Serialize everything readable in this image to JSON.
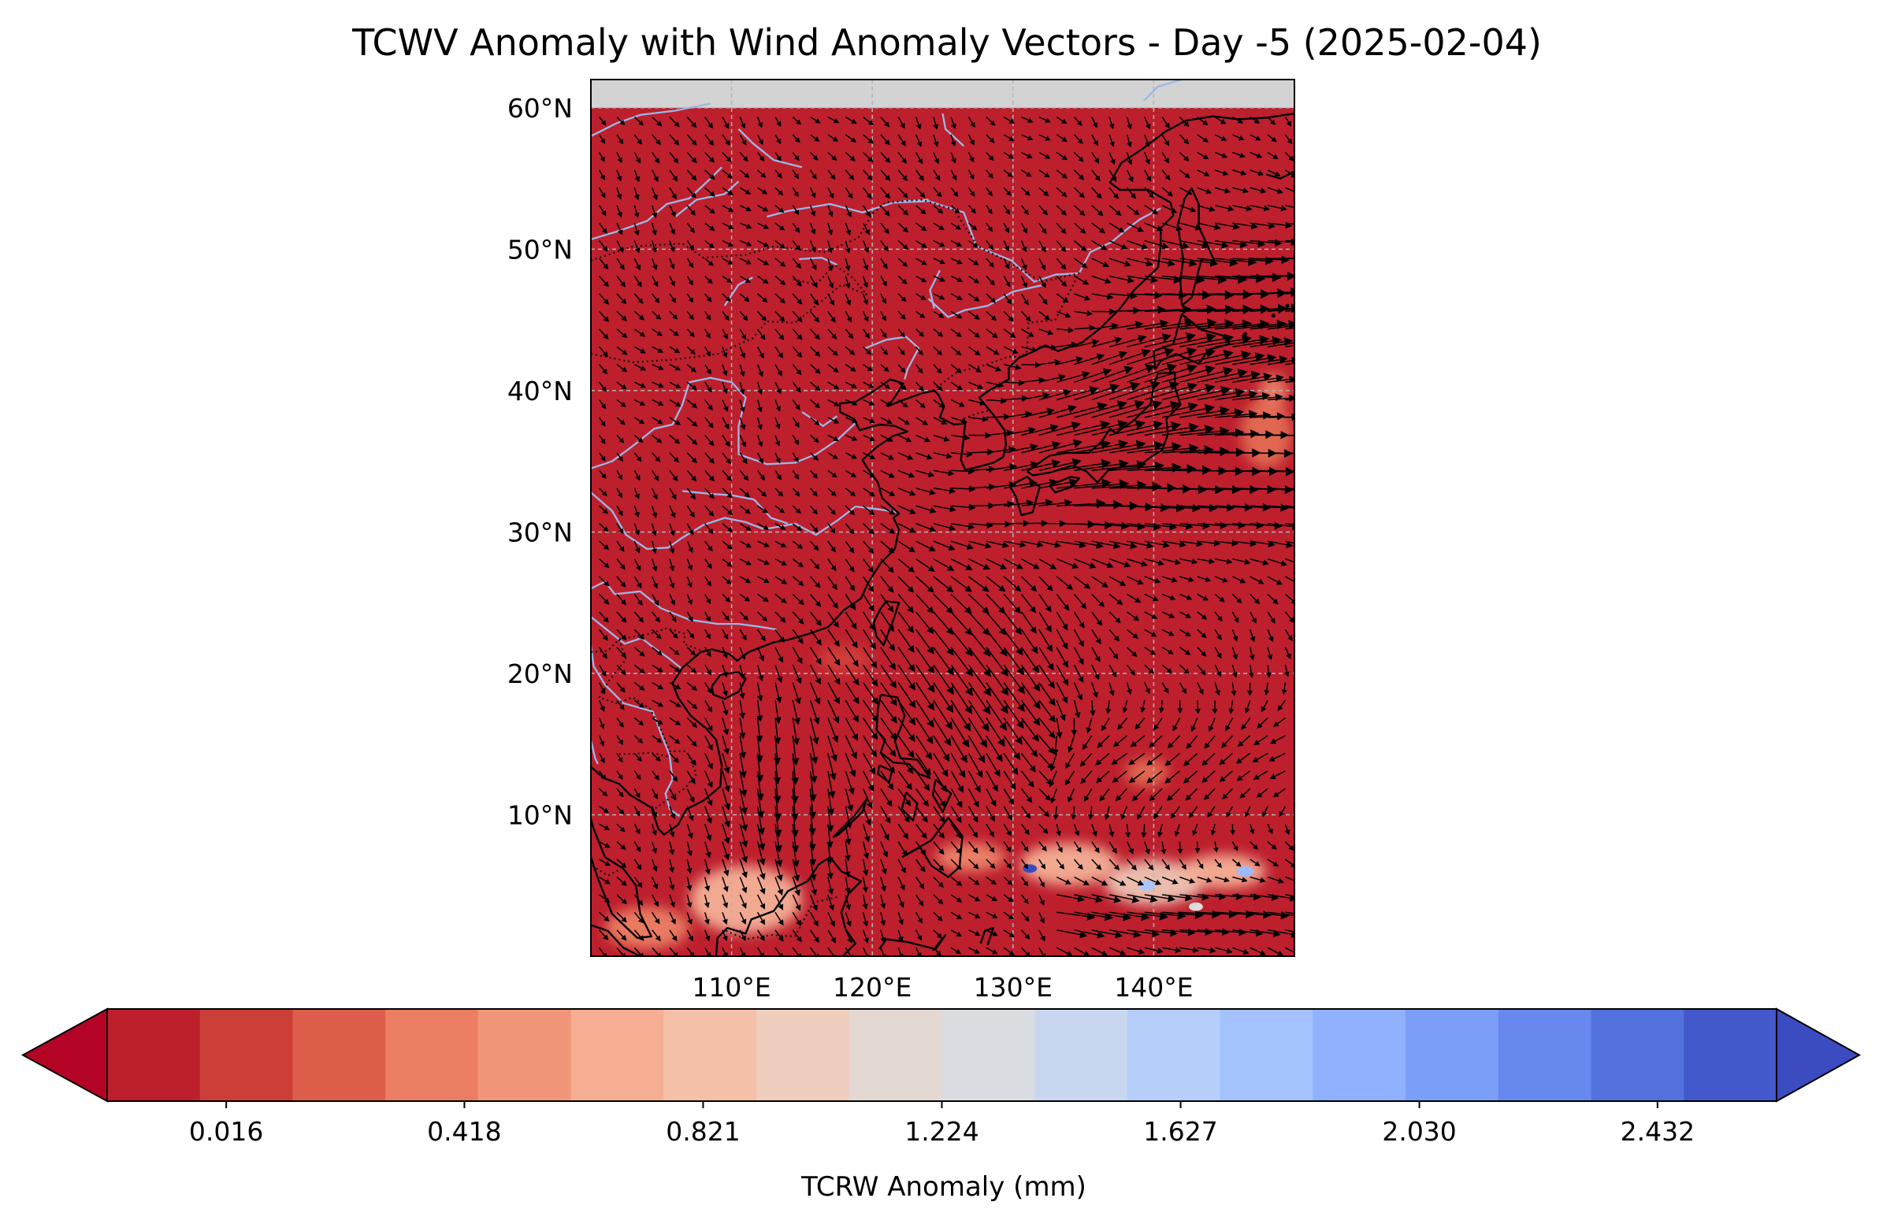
{
  "title": "TCWV Anomaly with Wind Anomaly Vectors - Day -5 (2025-02-04)",
  "map": {
    "extent": {
      "lon_min": 100,
      "lon_max": 150,
      "lat_min": 0,
      "lat_max": 62
    },
    "data_lat_max": 60,
    "background_color": "#bd1f2d",
    "nodata_color": "#d3d3d3",
    "coastline_color": "#000000",
    "river_color": "#9ab8e8",
    "gridline_color": "#b4b4b4",
    "lon_ticks": [
      {
        "value": 110,
        "label": "110°E"
      },
      {
        "value": 120,
        "label": "120°E"
      },
      {
        "value": 130,
        "label": "130°E"
      },
      {
        "value": 140,
        "label": "140°E"
      }
    ],
    "lat_ticks": [
      {
        "value": 60,
        "label": "60°N"
      },
      {
        "value": 50,
        "label": "50°N"
      },
      {
        "value": 40,
        "label": "40°N"
      },
      {
        "value": 30,
        "label": "30°N"
      },
      {
        "value": 20,
        "label": "20°N"
      },
      {
        "value": 10,
        "label": "10°N"
      }
    ],
    "anomaly_patches": [
      {
        "lon": 111,
        "lat": 4,
        "rx": 4,
        "ry": 2.4,
        "color": "#f7b89c"
      },
      {
        "lon": 104,
        "lat": 2,
        "rx": 3,
        "ry": 1.5,
        "color": "#ee8468"
      },
      {
        "lon": 127,
        "lat": 7,
        "rx": 2.5,
        "ry": 1.0,
        "color": "#f08b6e"
      },
      {
        "lon": 134,
        "lat": 6.5,
        "rx": 3.5,
        "ry": 1.5,
        "color": "#f7b89c"
      },
      {
        "lon": 140,
        "lat": 5.2,
        "rx": 3.5,
        "ry": 1.6,
        "color": "#f0cdbb"
      },
      {
        "lon": 145,
        "lat": 6,
        "rx": 3,
        "ry": 1.2,
        "color": "#f7b89c"
      },
      {
        "lon": 148,
        "lat": 37,
        "rx": 1.8,
        "ry": 2.5,
        "color": "#e46f55"
      },
      {
        "lon": 148.5,
        "lat": 40,
        "rx": 1.0,
        "ry": 1.2,
        "color": "#ee8468"
      },
      {
        "lon": 139.5,
        "lat": 13,
        "rx": 1.5,
        "ry": 1.0,
        "color": "#e46f55"
      },
      {
        "lon": 118,
        "lat": 21,
        "rx": 2.0,
        "ry": 1.0,
        "color": "#d23f3a"
      }
    ],
    "blue_spots": [
      {
        "lon": 131.2,
        "lat": 6.2,
        "r": 0.5,
        "color": "#3b4cc0"
      },
      {
        "lon": 139.5,
        "lat": 5.0,
        "r": 0.6,
        "color": "#aac7fd"
      },
      {
        "lon": 146.5,
        "lat": 6.0,
        "r": 0.6,
        "color": "#9abbff"
      },
      {
        "lon": 143,
        "lat": 3.5,
        "r": 0.5,
        "color": "#dddcdc"
      }
    ],
    "wind_vectors": {
      "spacing_deg": 1.25,
      "reference_note": "arrows drawn from a schematic wind anomaly field"
    }
  },
  "colorbar": {
    "label": "TCRW Anomaly (mm)",
    "vmin": -0.185,
    "vmax": 2.633,
    "colors": [
      "#bd1f2d",
      "#cc3f39",
      "#dd5f4b",
      "#eb7d62",
      "#f2967a",
      "#f6ae93",
      "#f5c0a8",
      "#efcebd",
      "#e4d9d2",
      "#d9dce1",
      "#c8d7ef",
      "#b6cefa",
      "#a3c2fe",
      "#8fb1fe",
      "#7b9ff9",
      "#6788ee",
      "#5472dd",
      "#4358cb"
    ],
    "under_color": "#b40426",
    "over_color": "#3b4cc0",
    "tick_values": [
      0.016,
      0.418,
      0.821,
      1.224,
      1.627,
      2.03,
      2.432
    ],
    "tick_labels": [
      "0.016",
      "0.418",
      "0.821",
      "1.224",
      "1.627",
      "2.030",
      "2.432"
    ]
  }
}
